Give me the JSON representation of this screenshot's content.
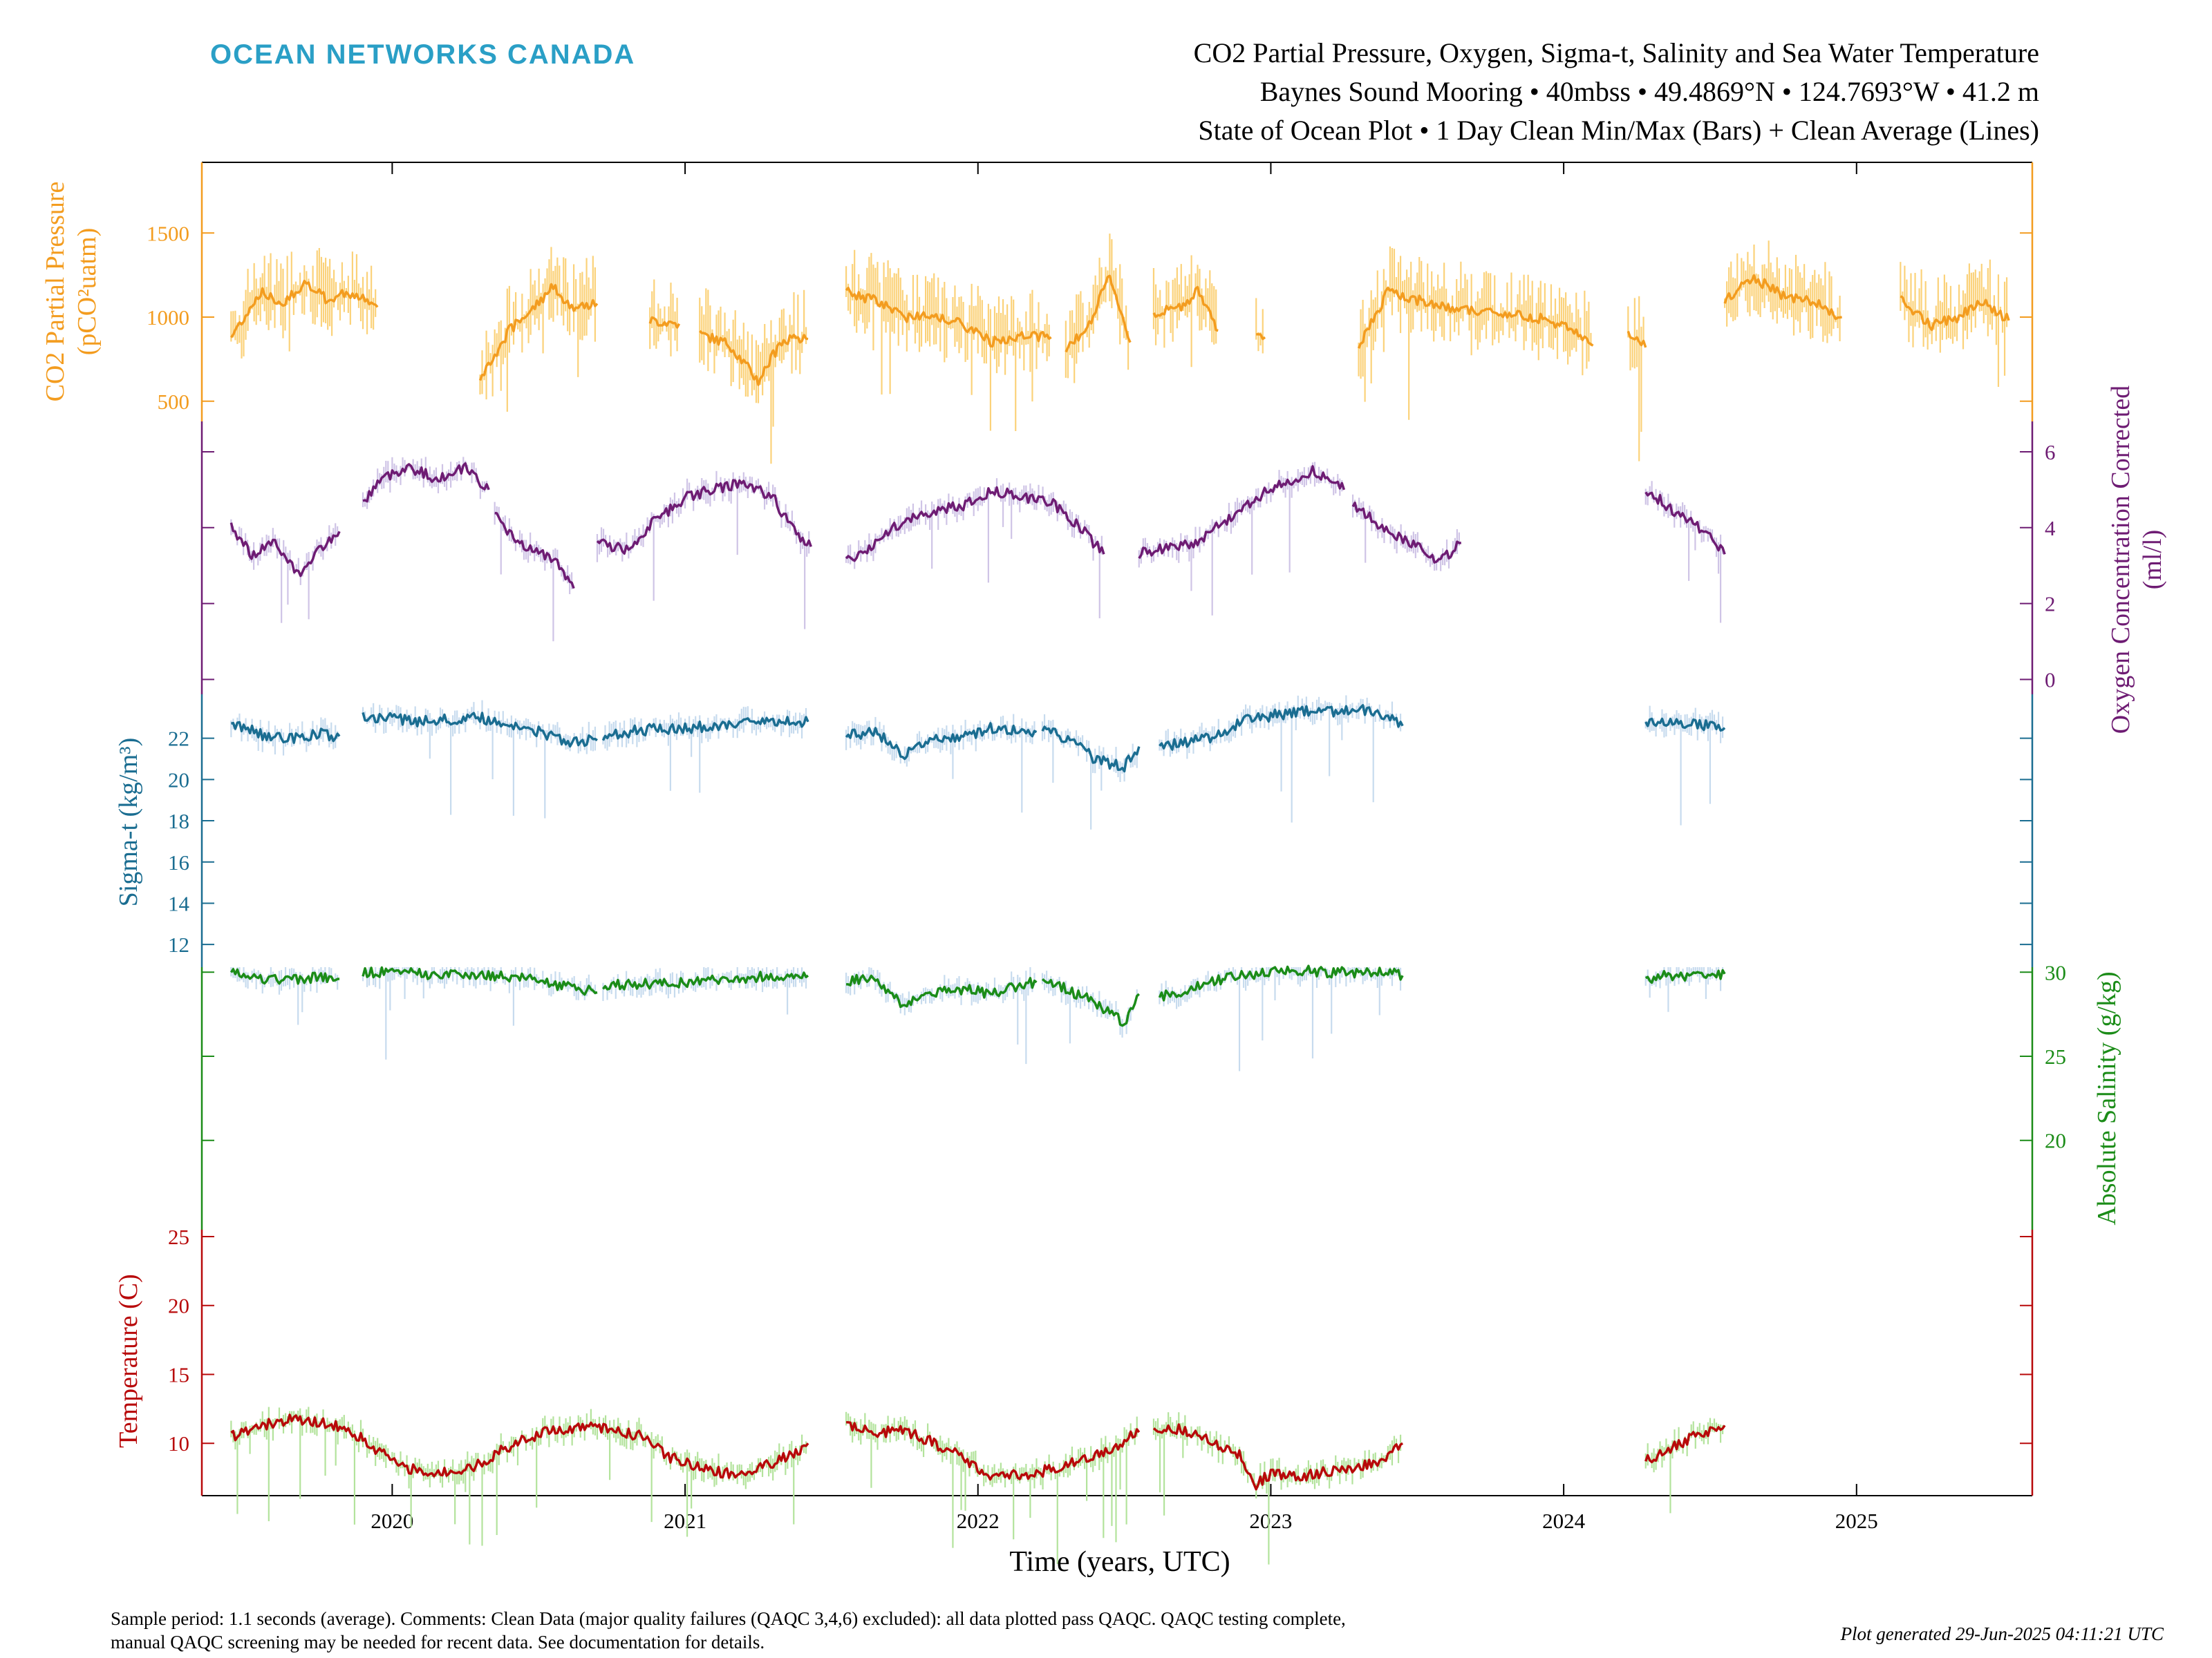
{
  "brand": "OCEAN NETWORKS CANADA",
  "title": {
    "line1": "CO2 Partial Pressure, Oxygen, Sigma-t, Salinity and Sea Water Temperature",
    "line2": "Baynes Sound Mooring • 40mbss • 49.4869°N • 124.7693°W • 41.2 m",
    "line3": "State of Ocean Plot • 1 Day Clean Min/Max (Bars) + Clean Average (Lines)"
  },
  "footer": {
    "note_line1": "Sample period: 1.1 seconds (average). Comments: Clean Data (major quality failures (QAQC 3,4,6) excluded): all data plotted pass QAQC. QAQC testing complete,",
    "note_line2": "manual QAQC screening may be needed for recent data. See documentation for details.",
    "generated": "Plot generated 29-Jun-2025 04:11:21 UTC"
  },
  "chart_data": {
    "type": "line",
    "xlabel": "Time (years, UTC)",
    "xlim": [
      2019.35,
      2025.6
    ],
    "xticks": [
      "2020",
      "2021",
      "2022",
      "2023",
      "2024",
      "2025"
    ],
    "panels": [
      {
        "id": "co2",
        "ylabel": "CO2 Partial Pressure",
        "ylabel2": "(pCO²uatm)",
        "axis_side": "left",
        "color": "#f39c1f",
        "band_color": "#fbd27a",
        "ylim": [
          380,
          1920
        ],
        "yticks": [
          500,
          1000,
          1500
        ],
        "series": {
          "name": "CO2 Partial Pressure",
          "segments": [
            {
              "x": [
                2019.45,
                2019.55,
                2019.62,
                2019.7,
                2019.78,
                2019.85,
                2019.95
              ],
              "y": [
                880,
                1150,
                1080,
                1200,
                1100,
                1150,
                1060
              ]
            },
            {
              "x": [
                2020.3,
                2020.4,
                2020.48,
                2020.55,
                2020.62,
                2020.7
              ],
              "y": [
                620,
                920,
                1050,
                1180,
                1050,
                1080
              ]
            },
            {
              "x": [
                2020.88,
                2020.98
              ],
              "y": [
                980,
                960
              ]
            },
            {
              "x": [
                2021.05,
                2021.15,
                2021.25,
                2021.33,
                2021.42
              ],
              "y": [
                900,
                840,
                620,
                860,
                870
              ]
            },
            {
              "x": [
                2021.55,
                2021.65,
                2021.75,
                2021.85,
                2021.95,
                2022.05,
                2022.15,
                2022.25
              ],
              "y": [
                1150,
                1100,
                1000,
                1020,
                950,
                850,
                900,
                880
              ]
            },
            {
              "x": [
                2022.3,
                2022.38,
                2022.45,
                2022.52
              ],
              "y": [
                820,
                950,
                1250,
                850
              ]
            },
            {
              "x": [
                2022.6,
                2022.68,
                2022.75,
                2022.82
              ],
              "y": [
                1020,
                1050,
                1150,
                920
              ]
            },
            {
              "x": [
                2022.95,
                2022.98
              ],
              "y": [
                880,
                880
              ]
            },
            {
              "x": [
                2023.3,
                2023.4,
                2023.5,
                2023.62,
                2023.75,
                2023.9,
                2024.0,
                2024.1
              ],
              "y": [
                830,
                1150,
                1100,
                1050,
                1030,
                1000,
                950,
                830
              ]
            },
            {
              "x": [
                2024.22,
                2024.28
              ],
              "y": [
                920,
                820
              ]
            },
            {
              "x": [
                2024.55,
                2024.65,
                2024.75,
                2024.85,
                2024.95
              ],
              "y": [
                1100,
                1230,
                1130,
                1090,
                1000
              ]
            },
            {
              "x": [
                2025.15,
                2025.25,
                2025.35,
                2025.42,
                2025.52
              ],
              "y": [
                1100,
                950,
                1000,
                1100,
                980
              ]
            }
          ]
        }
      },
      {
        "id": "oxygen",
        "ylabel": "Oxygen Concentration Corrected",
        "ylabel2": "(ml/l)",
        "axis_side": "right",
        "color": "#6e1c73",
        "band_color": "#cfc4e6",
        "ylim": [
          -0.3,
          6.8
        ],
        "yticks": [
          0,
          2,
          4,
          6
        ],
        "series": {
          "name": "Oxygen Concentration Corrected",
          "segments": [
            {
              "x": [
                2019.45,
                2019.52,
                2019.6,
                2019.68,
                2019.75,
                2019.82
              ],
              "y": [
                4.0,
                3.3,
                3.6,
                2.8,
                3.4,
                3.9
              ]
            },
            {
              "x": [
                2019.9,
                2019.95,
                2020.05,
                2020.15,
                2020.25,
                2020.33
              ],
              "y": [
                4.6,
                5.2,
                5.6,
                5.3,
                5.6,
                5.0
              ]
            },
            {
              "x": [
                2020.35,
                2020.45,
                2020.55,
                2020.62
              ],
              "y": [
                4.3,
                3.5,
                3.2,
                2.4
              ]
            },
            {
              "x": [
                2020.7,
                2020.8,
                2020.9,
                2021.0,
                2021.1,
                2021.2,
                2021.3,
                2021.38,
                2021.43
              ],
              "y": [
                3.6,
                3.4,
                4.2,
                4.8,
                5.0,
                5.2,
                4.8,
                3.8,
                3.5
              ]
            },
            {
              "x": [
                2021.55,
                2021.65,
                2021.75,
                2021.85,
                2021.95,
                2022.05,
                2022.15,
                2022.25,
                2022.35,
                2022.43
              ],
              "y": [
                3.1,
                3.6,
                4.2,
                4.4,
                4.6,
                5.0,
                4.8,
                4.7,
                4.0,
                3.3
              ]
            },
            {
              "x": [
                2022.55,
                2022.65,
                2022.75,
                2022.85,
                2022.95,
                2023.05,
                2023.15,
                2023.25
              ],
              "y": [
                3.3,
                3.5,
                3.6,
                4.2,
                4.8,
                5.2,
                5.5,
                5.0
              ]
            },
            {
              "x": [
                2023.28,
                2023.38,
                2023.48,
                2023.58,
                2023.65
              ],
              "y": [
                4.6,
                4.0,
                3.6,
                3.1,
                3.6
              ]
            },
            {
              "x": [
                2024.28,
                2024.35,
                2024.42,
                2024.5,
                2024.55
              ],
              "y": [
                5.0,
                4.6,
                4.2,
                3.8,
                3.3
              ]
            }
          ]
        }
      },
      {
        "id": "sigma",
        "ylabel": "Sigma-t (kg/m³)",
        "axis_side": "left",
        "color": "#1a6d91",
        "band_color": "#c7dbee",
        "ylim": [
          10.9,
          24.3
        ],
        "yticks": [
          12,
          14,
          16,
          18,
          20,
          22
        ],
        "series": {
          "name": "Sigma-t",
          "segments": [
            {
              "x": [
                2019.45,
                2019.55,
                2019.65,
                2019.75,
                2019.82
              ],
              "y": [
                22.8,
                22.2,
                22.0,
                22.2,
                22.1
              ]
            },
            {
              "x": [
                2019.9,
                2020.0,
                2020.1,
                2020.2,
                2020.3,
                2020.4,
                2020.5,
                2020.6,
                2020.7
              ],
              "y": [
                23.0,
                23.0,
                22.8,
                22.9,
                23.0,
                22.6,
                22.3,
                21.8,
                21.9
              ]
            },
            {
              "x": [
                2020.72,
                2020.85,
                2021.0,
                2021.1,
                2021.2,
                2021.3,
                2021.42
              ],
              "y": [
                22.1,
                22.4,
                22.5,
                22.6,
                22.7,
                22.9,
                22.8
              ]
            },
            {
              "x": [
                2021.55,
                2021.65,
                2021.75,
                2021.85,
                2021.95,
                2022.05,
                2022.15,
                2022.2
              ],
              "y": [
                22.1,
                22.3,
                21.2,
                22.0,
                22.1,
                22.5,
                22.4,
                22.3
              ]
            },
            {
              "x": [
                2022.22,
                2022.3,
                2022.4,
                2022.5,
                2022.55
              ],
              "y": [
                22.6,
                22.0,
                21.0,
                20.6,
                21.6
              ]
            },
            {
              "x": [
                2022.62,
                2022.7,
                2022.8,
                2022.9,
                2023.0,
                2023.1,
                2023.2,
                2023.3,
                2023.4,
                2023.45
              ],
              "y": [
                21.6,
                21.8,
                22.0,
                22.8,
                23.1,
                23.3,
                23.3,
                23.4,
                23.0,
                22.6
              ]
            },
            {
              "x": [
                2024.28,
                2024.35,
                2024.45,
                2024.55
              ],
              "y": [
                22.8,
                22.7,
                22.7,
                22.5
              ]
            }
          ]
        }
      },
      {
        "id": "salinity",
        "ylabel": "Absolute Salinity (g/kg)",
        "axis_side": "right",
        "color": "#1b8c18",
        "band_color": "#c7dbee",
        "ylim": [
          15.1,
          30.3
        ],
        "yticks": [
          20,
          25,
          30
        ],
        "series": {
          "name": "Absolute Salinity",
          "segments": [
            {
              "x": [
                2019.45,
                2019.55,
                2019.65,
                2019.75,
                2019.82
              ],
              "y": [
                30.0,
                29.6,
                29.5,
                29.7,
                29.6
              ]
            },
            {
              "x": [
                2019.9,
                2020.0,
                2020.1,
                2020.2,
                2020.3,
                2020.4,
                2020.5,
                2020.6,
                2020.7
              ],
              "y": [
                30.0,
                30.0,
                29.9,
                29.8,
                29.9,
                29.7,
                29.5,
                29.1,
                28.8
              ]
            },
            {
              "x": [
                2020.72,
                2020.85,
                2021.0,
                2021.1,
                2021.2,
                2021.3,
                2021.42
              ],
              "y": [
                29.2,
                29.3,
                29.4,
                29.5,
                29.6,
                29.8,
                29.8
              ]
            },
            {
              "x": [
                2021.55,
                2021.65,
                2021.75,
                2021.85,
                2021.95,
                2022.05,
                2022.15,
                2022.2
              ],
              "y": [
                29.5,
                29.6,
                28.0,
                28.8,
                29.0,
                28.7,
                29.3,
                29.4
              ]
            },
            {
              "x": [
                2022.22,
                2022.3,
                2022.4,
                2022.5,
                2022.55
              ],
              "y": [
                29.6,
                29.0,
                28.2,
                27.0,
                28.7
              ]
            },
            {
              "x": [
                2022.62,
                2022.7,
                2022.8,
                2022.9,
                2023.0,
                2023.1,
                2023.2,
                2023.3,
                2023.4,
                2023.45
              ],
              "y": [
                28.6,
                28.8,
                29.5,
                29.8,
                30.0,
                30.1,
                30.0,
                30.0,
                30.0,
                29.8
              ]
            },
            {
              "x": [
                2024.28,
                2024.35,
                2024.45,
                2024.55
              ],
              "y": [
                29.6,
                29.8,
                29.8,
                29.9
              ]
            }
          ]
        }
      },
      {
        "id": "temperature",
        "ylabel": "Temperature (C)",
        "axis_side": "left",
        "color": "#b8090a",
        "band_color": "#b3e39c",
        "ylim": [
          6.2,
          26.0
        ],
        "yticks": [
          10,
          15,
          20,
          25
        ],
        "series": {
          "name": "Temperature",
          "segments": [
            {
              "x": [
                2019.45,
                2019.55,
                2019.65,
                2019.75,
                2019.85,
                2019.95,
                2020.05,
                2020.15,
                2020.25,
                2020.35,
                2020.45,
                2020.55,
                2020.65,
                2020.75,
                2020.85,
                2020.95,
                2021.05,
                2021.15,
                2021.25,
                2021.35,
                2021.42
              ],
              "y": [
                10.5,
                11.2,
                11.8,
                11.5,
                11.0,
                9.5,
                8.2,
                7.8,
                8.0,
                9.2,
                10.3,
                11.0,
                11.2,
                11.0,
                10.5,
                9.0,
                8.2,
                7.8,
                8.2,
                9.0,
                10.0
              ]
            },
            {
              "x": [
                2021.55,
                2021.65,
                2021.75,
                2021.85,
                2021.95,
                2022.02,
                2022.1,
                2022.2,
                2022.3,
                2022.4,
                2022.5,
                2022.55
              ],
              "y": [
                11.2,
                10.8,
                10.9,
                10.0,
                9.0,
                7.6,
                7.6,
                7.8,
                8.5,
                9.0,
                10.2,
                10.8
              ]
            },
            {
              "x": [
                2022.6,
                2022.7,
                2022.8,
                2022.9,
                2022.95,
                2023.0,
                2023.1,
                2023.2,
                2023.3,
                2023.4,
                2023.45
              ],
              "y": [
                11.0,
                11.0,
                10.2,
                9.0,
                7.0,
                7.8,
                7.5,
                8.0,
                8.2,
                9.0,
                10.0
              ]
            },
            {
              "x": [
                2024.28,
                2024.35,
                2024.45,
                2024.55
              ],
              "y": [
                8.7,
                9.5,
                10.5,
                11.3
              ]
            }
          ]
        }
      }
    ]
  }
}
